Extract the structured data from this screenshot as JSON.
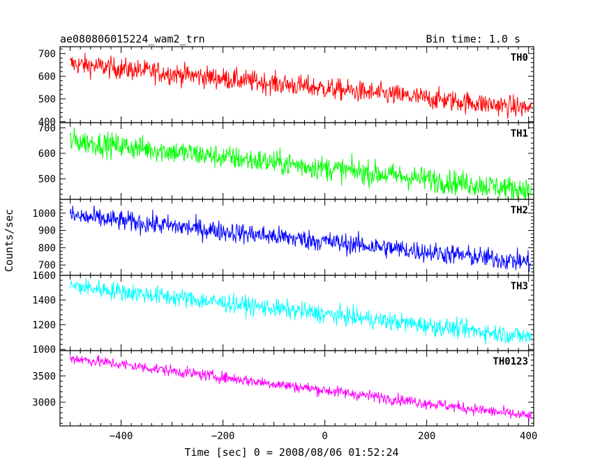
{
  "header": {
    "left_title": "ae080806015224_wam2_trn",
    "right_title": "Bin time: 1.0 s"
  },
  "chart_data": {
    "type": "line",
    "title": "ae080806015224_wam2_trn",
    "subtitle": "Bin time: 1.0 s",
    "xlabel": "Time [sec] 0 = 2008/08/06 01:52:24",
    "ylabel": "Counts/sec",
    "xlim": [
      -520,
      410
    ],
    "x_range": [
      -500,
      405
    ],
    "x_ticks": [
      -400,
      -200,
      0,
      200,
      400
    ],
    "x_tick_labels": [
      "−400",
      "−200",
      "0",
      "200",
      "400"
    ],
    "grid": false,
    "panels": [
      {
        "name": "TH0",
        "color": "#ff0000",
        "ylim": [
          395,
          730
        ],
        "yticks": [
          400,
          500,
          600,
          700
        ],
        "trend_start": 655,
        "trend_end": 458,
        "noise": 24
      },
      {
        "name": "TH1",
        "color": "#00ff00",
        "ylim": [
          420,
          720
        ],
        "yticks": [
          500,
          600,
          700
        ],
        "trend_start": 650,
        "trend_end": 455,
        "noise": 24
      },
      {
        "name": "TH2",
        "color": "#0000ff",
        "ylim": [
          640,
          1080
        ],
        "yticks": [
          700,
          800,
          900,
          1000
        ],
        "trend_start": 985,
        "trend_end": 715,
        "noise": 30
      },
      {
        "name": "TH3",
        "color": "#00ffff",
        "ylim": [
          990,
          1600
        ],
        "yticks": [
          1000,
          1200,
          1400,
          1600
        ],
        "trend_start": 1515,
        "trend_end": 1100,
        "noise": 38
      },
      {
        "name": "TH0123",
        "color": "#ff00ff",
        "ylim": [
          2550,
          3980
        ],
        "yticks": [
          3000,
          3500
        ],
        "trend_start": 3840,
        "trend_end": 2730,
        "noise": 55
      }
    ]
  }
}
